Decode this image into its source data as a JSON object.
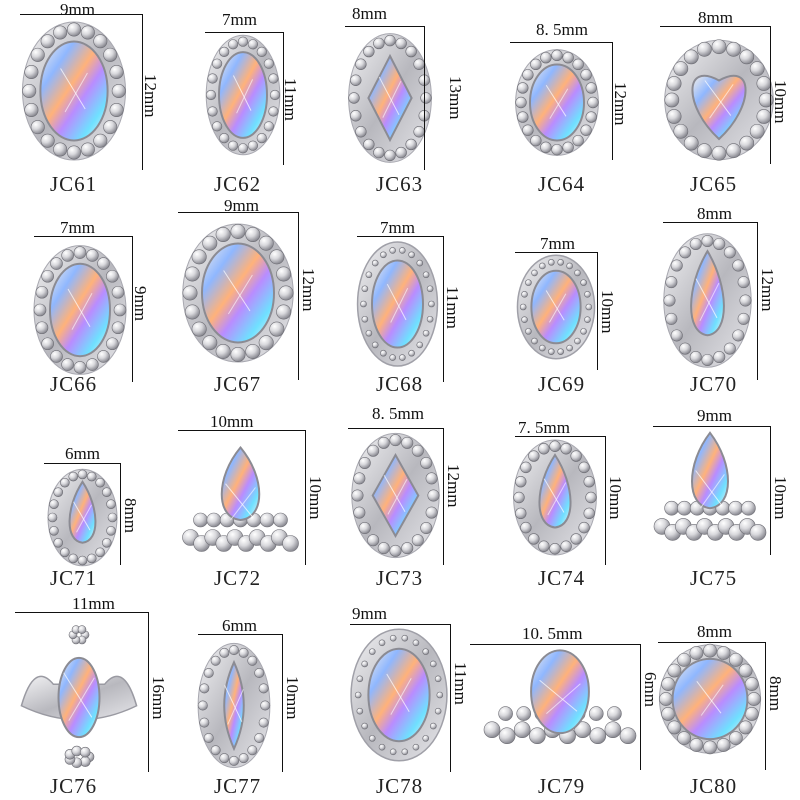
{
  "items": [
    {
      "code": "JC61",
      "width": "9mm",
      "height": "12mm",
      "shape": "oval-halo"
    },
    {
      "code": "JC62",
      "width": "7mm",
      "height": "11mm",
      "shape": "oval-halo-narrow"
    },
    {
      "code": "JC63",
      "width": "8mm",
      "height": "13mm",
      "shape": "rhombus-halo"
    },
    {
      "code": "JC64",
      "width": "8. 5mm",
      "height": "12mm",
      "shape": "oval-starburst"
    },
    {
      "code": "JC65",
      "width": "8mm",
      "height": "10mm",
      "shape": "heart-halo"
    },
    {
      "code": "JC66",
      "width": "7mm",
      "height": "9mm",
      "shape": "oval-halo"
    },
    {
      "code": "JC67",
      "width": "9mm",
      "height": "12mm",
      "shape": "oval-halo"
    },
    {
      "code": "JC68",
      "width": "7mm",
      "height": "11mm",
      "shape": "oval-scroll-frame"
    },
    {
      "code": "JC69",
      "width": "7mm",
      "height": "10mm",
      "shape": "oval-silver"
    },
    {
      "code": "JC70",
      "width": "8mm",
      "height": "12mm",
      "shape": "teardrop-halo"
    },
    {
      "code": "JC71",
      "width": "6mm",
      "height": "8mm",
      "shape": "teardrop-halo"
    },
    {
      "code": "JC72",
      "width": "10mm",
      "height": "10mm",
      "shape": "teardrop-cluster"
    },
    {
      "code": "JC73",
      "width": "8. 5mm",
      "height": "12mm",
      "shape": "rhombus-halo"
    },
    {
      "code": "JC74",
      "width": "7. 5mm",
      "height": "10mm",
      "shape": "teardrop-halo"
    },
    {
      "code": "JC75",
      "width": "9mm",
      "height": "10mm",
      "shape": "teardrop-cluster"
    },
    {
      "code": "JC76",
      "width": "11mm",
      "height": "16mm",
      "shape": "crown"
    },
    {
      "code": "JC77",
      "width": "6mm",
      "height": "10mm",
      "shape": "marquise-halo"
    },
    {
      "code": "JC78",
      "width": "9mm",
      "height": "11mm",
      "shape": "oval-filigree"
    },
    {
      "code": "JC79",
      "width": "10. 5mm",
      "height": "6mm",
      "shape": "oval-cluster-wide"
    },
    {
      "code": "JC80",
      "width": "8mm",
      "height": "8mm",
      "shape": "round-halo"
    }
  ]
}
